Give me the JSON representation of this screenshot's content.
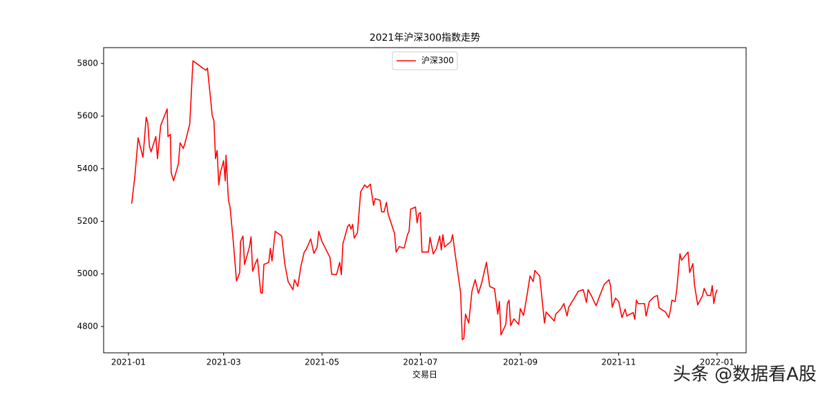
{
  "chart_data": {
    "type": "line",
    "title": "2021年沪深300指数走势",
    "x_label": "交易日",
    "x": [
      2,
      4,
      6,
      9,
      11,
      12,
      13,
      14,
      17,
      18,
      20,
      24,
      24.5,
      26,
      26.5,
      28,
      31,
      32,
      34,
      35,
      38,
      40,
      45,
      48,
      49,
      52,
      53,
      54,
      55,
      56,
      57,
      59,
      60,
      60.5,
      62,
      63,
      65,
      67,
      69,
      69.5,
      71,
      72,
      75,
      76,
      77,
      79,
      80,
      82,
      83,
      84,
      87,
      88,
      89,
      91,
      95,
      97,
      99,
      102,
      103,
      105,
      107,
      109,
      110,
      111,
      113,
      115,
      117,
      118,
      120,
      125,
      126,
      129,
      131,
      132,
      133,
      136,
      137,
      138,
      139,
      140,
      142,
      144,
      146.5,
      148,
      150,
      152,
      153,
      156,
      157,
      158.5,
      160,
      161,
      165,
      166,
      168,
      170,
      171,
      173,
      174,
      175,
      178,
      179,
      180,
      181,
      182,
      186,
      187,
      189,
      191,
      193,
      194,
      195,
      196,
      200,
      201,
      202,
      206,
      207,
      208,
      209,
      211,
      213,
      215,
      217,
      219,
      222,
      224,
      227,
      229,
      230,
      231,
      234,
      235,
      236,
      237,
      239,
      242,
      243,
      245,
      247,
      249,
      251,
      252,
      255,
      258,
      259,
      264,
      265,
      268,
      270,
      272,
      273,
      279,
      282,
      284,
      285,
      287,
      290,
      292,
      295,
      298,
      299,
      300,
      302,
      304,
      306,
      308,
      309,
      311,
      313,
      314,
      315,
      316,
      320,
      321,
      323,
      326,
      328,
      329,
      333,
      335,
      336,
      337,
      339,
      340,
      342,
      343,
      347,
      348,
      350,
      351,
      353,
      356,
      357,
      359,
      361,
      362,
      363,
      364,
      365
    ],
    "series": [
      {
        "name": "沪深300",
        "color": "#ff0000",
        "values": [
          5267,
          5372,
          5517,
          5443,
          5595,
          5574,
          5485,
          5464,
          5522,
          5438,
          5564,
          5627,
          5522,
          5530,
          5385,
          5354,
          5419,
          5498,
          5477,
          5496,
          5569,
          5810,
          5787,
          5774,
          5782,
          5600,
          5582,
          5438,
          5469,
          5338,
          5385,
          5430,
          5354,
          5451,
          5280,
          5254,
          5123,
          4973,
          5005,
          5123,
          5144,
          5036,
          5102,
          5141,
          5010,
          5044,
          5057,
          4929,
          4926,
          5036,
          5044,
          5097,
          5049,
          5162,
          5144,
          5036,
          4971,
          4940,
          4978,
          4952,
          5031,
          5083,
          5091,
          5104,
          5133,
          5078,
          5102,
          5162,
          5123,
          5062,
          4999,
          4997,
          5044,
          4997,
          5115,
          5181,
          5188,
          5170,
          5188,
          5136,
          5157,
          5312,
          5338,
          5328,
          5341,
          5260,
          5286,
          5280,
          5236,
          5236,
          5272,
          5228,
          5154,
          5083,
          5104,
          5099,
          5099,
          5149,
          5162,
          5246,
          5254,
          5194,
          5228,
          5233,
          5083,
          5083,
          5139,
          5076,
          5097,
          5144,
          5091,
          5149,
          5102,
          5123,
          5149,
          5102,
          4926,
          4750,
          4755,
          4847,
          4813,
          4934,
          4978,
          4926,
          4965,
          5044,
          4952,
          4944,
          4847,
          4895,
          4768,
          4808,
          4887,
          4900,
          4803,
          4829,
          4808,
          4868,
          4842,
          4913,
          4992,
          4971,
          5013,
          4992,
          4813,
          4855,
          4821,
          4847,
          4866,
          4887,
          4840,
          4873,
          4934,
          4940,
          4892,
          4940,
          4918,
          4879,
          4913,
          4960,
          4978,
          4952,
          4873,
          4908,
          4895,
          4834,
          4866,
          4840,
          4847,
          4853,
          4827,
          4900,
          4887,
          4887,
          4840,
          4895,
          4913,
          4918,
          4871,
          4855,
          4834,
          4860,
          4900,
          4895,
          4940,
          5076,
          5052,
          5083,
          5005,
          5039,
          4958,
          4882,
          4918,
          4945,
          4918,
          4918,
          4955,
          4887,
          4923,
          4940
        ]
      }
    ],
    "xlim": [
      -15.4,
      383
    ],
    "ylim": [
      4700,
      5860
    ],
    "xticks": [
      {
        "value": 0,
        "label": "2021-01"
      },
      {
        "value": 59,
        "label": "2021-03"
      },
      {
        "value": 120,
        "label": "2021-05"
      },
      {
        "value": 181,
        "label": "2021-07"
      },
      {
        "value": 243,
        "label": "2021-09"
      },
      {
        "value": 304,
        "label": "2021-11"
      },
      {
        "value": 365,
        "label": "2022-01"
      }
    ],
    "yticks": [
      4800,
      5000,
      5200,
      5400,
      5600,
      5800
    ],
    "legend": "upper center",
    "grid": false
  },
  "watermark": "头条 @数据看A股"
}
